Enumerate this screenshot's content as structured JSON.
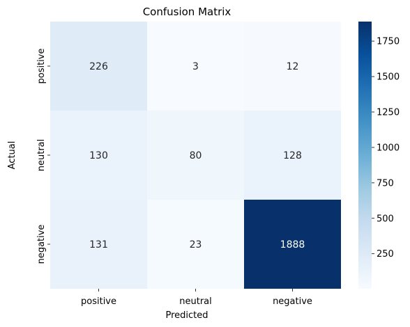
{
  "chart_data": {
    "type": "heatmap",
    "title": "Confusion Matrix",
    "xlabel": "Predicted",
    "ylabel": "Actual",
    "x_categories": [
      "positive",
      "neutral",
      "negative"
    ],
    "y_categories": [
      "positive",
      "neutral",
      "negative"
    ],
    "values": [
      [
        226,
        3,
        12
      ],
      [
        130,
        80,
        128
      ],
      [
        131,
        23,
        1888
      ]
    ],
    "colormap": "Blues",
    "colorbar": {
      "range": [
        3,
        1888
      ],
      "ticks": [
        250,
        500,
        750,
        1000,
        1250,
        1500,
        1750
      ]
    }
  }
}
